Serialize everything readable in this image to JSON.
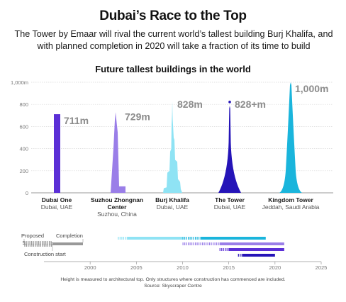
{
  "header": {
    "title": "Dubai’s Race to the Top",
    "subtitle": "The Tower by Emaar will rival the current world’s tallest building Burj Khalifa, and with planned completion in 2020 will take a fraction of its time to build"
  },
  "chart_data": [
    {
      "type": "bar",
      "title": "Future tallest buildings in the world",
      "ylim": [
        0,
        1000
      ],
      "yticks": [
        "0",
        "200",
        "400",
        "600",
        "800",
        "1,000m"
      ],
      "categories": [
        "Dubai One",
        "Suzhou Zhongnan Center",
        "Burj Khalifa",
        "The Tower",
        "Kingdom Tower"
      ],
      "category_lines": [
        [
          "Dubai One"
        ],
        [
          "Suzhou Zhongnan",
          "Center"
        ],
        [
          "Burj Khalifa"
        ],
        [
          "The Tower"
        ],
        [
          "Kingdom Tower"
        ]
      ],
      "locations": [
        [
          "Dubai, UAE"
        ],
        [
          "Suzhou, China"
        ],
        [
          "Dubai, UAE"
        ],
        [
          "Dubai, UAE"
        ],
        [
          "Jeddah, Saudi Arabia"
        ]
      ],
      "values": [
        711,
        729,
        828,
        828,
        1000
      ],
      "value_labels": [
        "711m",
        "729m",
        "828m",
        "828+m",
        "1,000m"
      ],
      "colors": [
        "#5b2fd6",
        "#9a7ee8",
        "#8fe3f4",
        "#2514b8",
        "#1ab5dc"
      ]
    },
    {
      "type": "timeline",
      "xlim": [
        1995,
        2025
      ],
      "xticks": [
        2000,
        2005,
        2010,
        2015,
        2020,
        2025
      ],
      "legend": {
        "proposed": "Proposed",
        "completion": "Completion",
        "construction_start": "Construction start"
      },
      "rows": [
        {
          "building": "Burj Khalifa",
          "color": "#8fe3f4",
          "proposed": [
            2003,
            2004
          ],
          "construction": [
            2004,
            2010
          ]
        },
        {
          "building": "Kingdom Tower",
          "color": "#1ab5dc",
          "proposed": [
            2010,
            2012
          ],
          "construction": [
            2012,
            2019
          ]
        },
        {
          "building": "Suzhou Zhongnan Center",
          "color": "#9a7ee8",
          "proposed": [
            2010,
            2014
          ],
          "construction": [
            2014,
            2021
          ]
        },
        {
          "building": "Dubai One",
          "color": "#5b2fd6",
          "proposed": [
            2014,
            2015
          ],
          "construction": [
            2015,
            2021
          ]
        },
        {
          "building": "The Tower",
          "color": "#2514b8",
          "proposed": [
            2016,
            2016.5
          ],
          "construction": [
            2016.5,
            2020
          ]
        }
      ]
    }
  ],
  "footer": {
    "note": "Height is measured to architectural top. Only structures where construction has commenced are included.",
    "source": "Source: Skyscraper Centre"
  },
  "colors": {
    "grid": "#d9d9d9",
    "axis_text": "#777777",
    "value_label": "#8c8c8c",
    "legend_grey": "#999999"
  }
}
